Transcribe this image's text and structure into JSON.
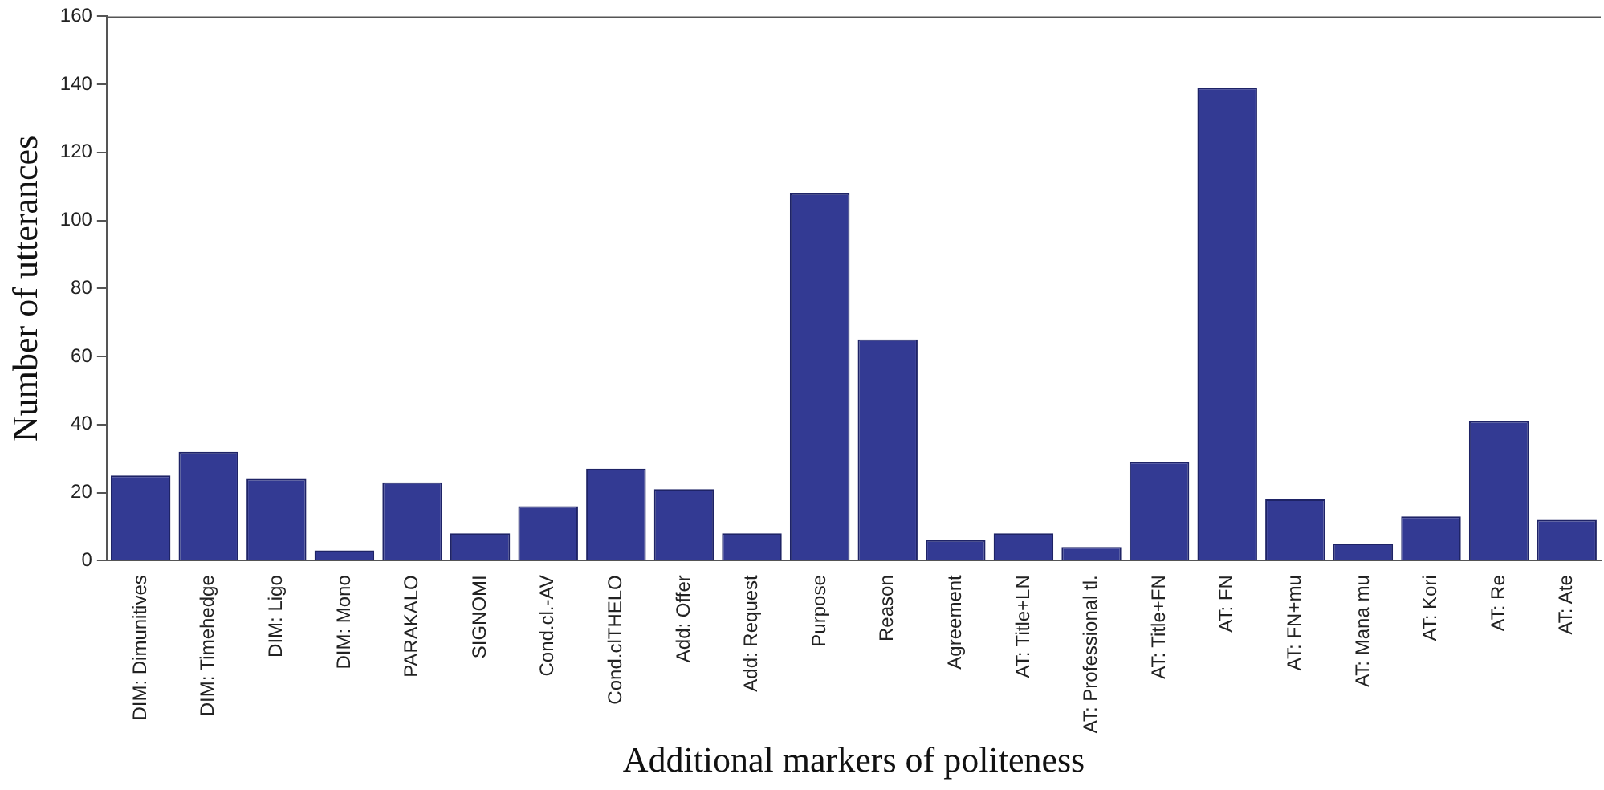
{
  "chart_data": {
    "type": "bar",
    "xlabel": "Additional markers of politeness",
    "ylabel": "Number of utterances",
    "categories": [
      "DIM: Dimunitives",
      "DIM: Timehedge",
      "DIM: Ligo",
      "DIM: Mono",
      "PARAKALO",
      "SIGNOMI",
      "Cond.cl.-AV",
      "Cond.clTHELO",
      "Add: Offer",
      "Add: Request",
      "Purpose",
      "Reason",
      "Agreement",
      "AT: Title+LN",
      "AT: Professional tl.",
      "AT: Title+FN",
      "AT: FN",
      "AT: FN+mu",
      "AT: Mana mu",
      "AT: Kori",
      "AT: Re",
      "AT: Ate"
    ],
    "values": [
      25,
      32,
      24,
      3,
      23,
      8,
      16,
      27,
      21,
      8,
      108,
      65,
      6,
      8,
      4,
      29,
      139,
      18,
      5,
      13,
      41,
      12
    ],
    "color": "#333a93",
    "ylim": [
      0,
      160
    ],
    "yticks": [
      0,
      20,
      40,
      60,
      80,
      100,
      120,
      140,
      160
    ],
    "grid": false,
    "legend": false
  }
}
